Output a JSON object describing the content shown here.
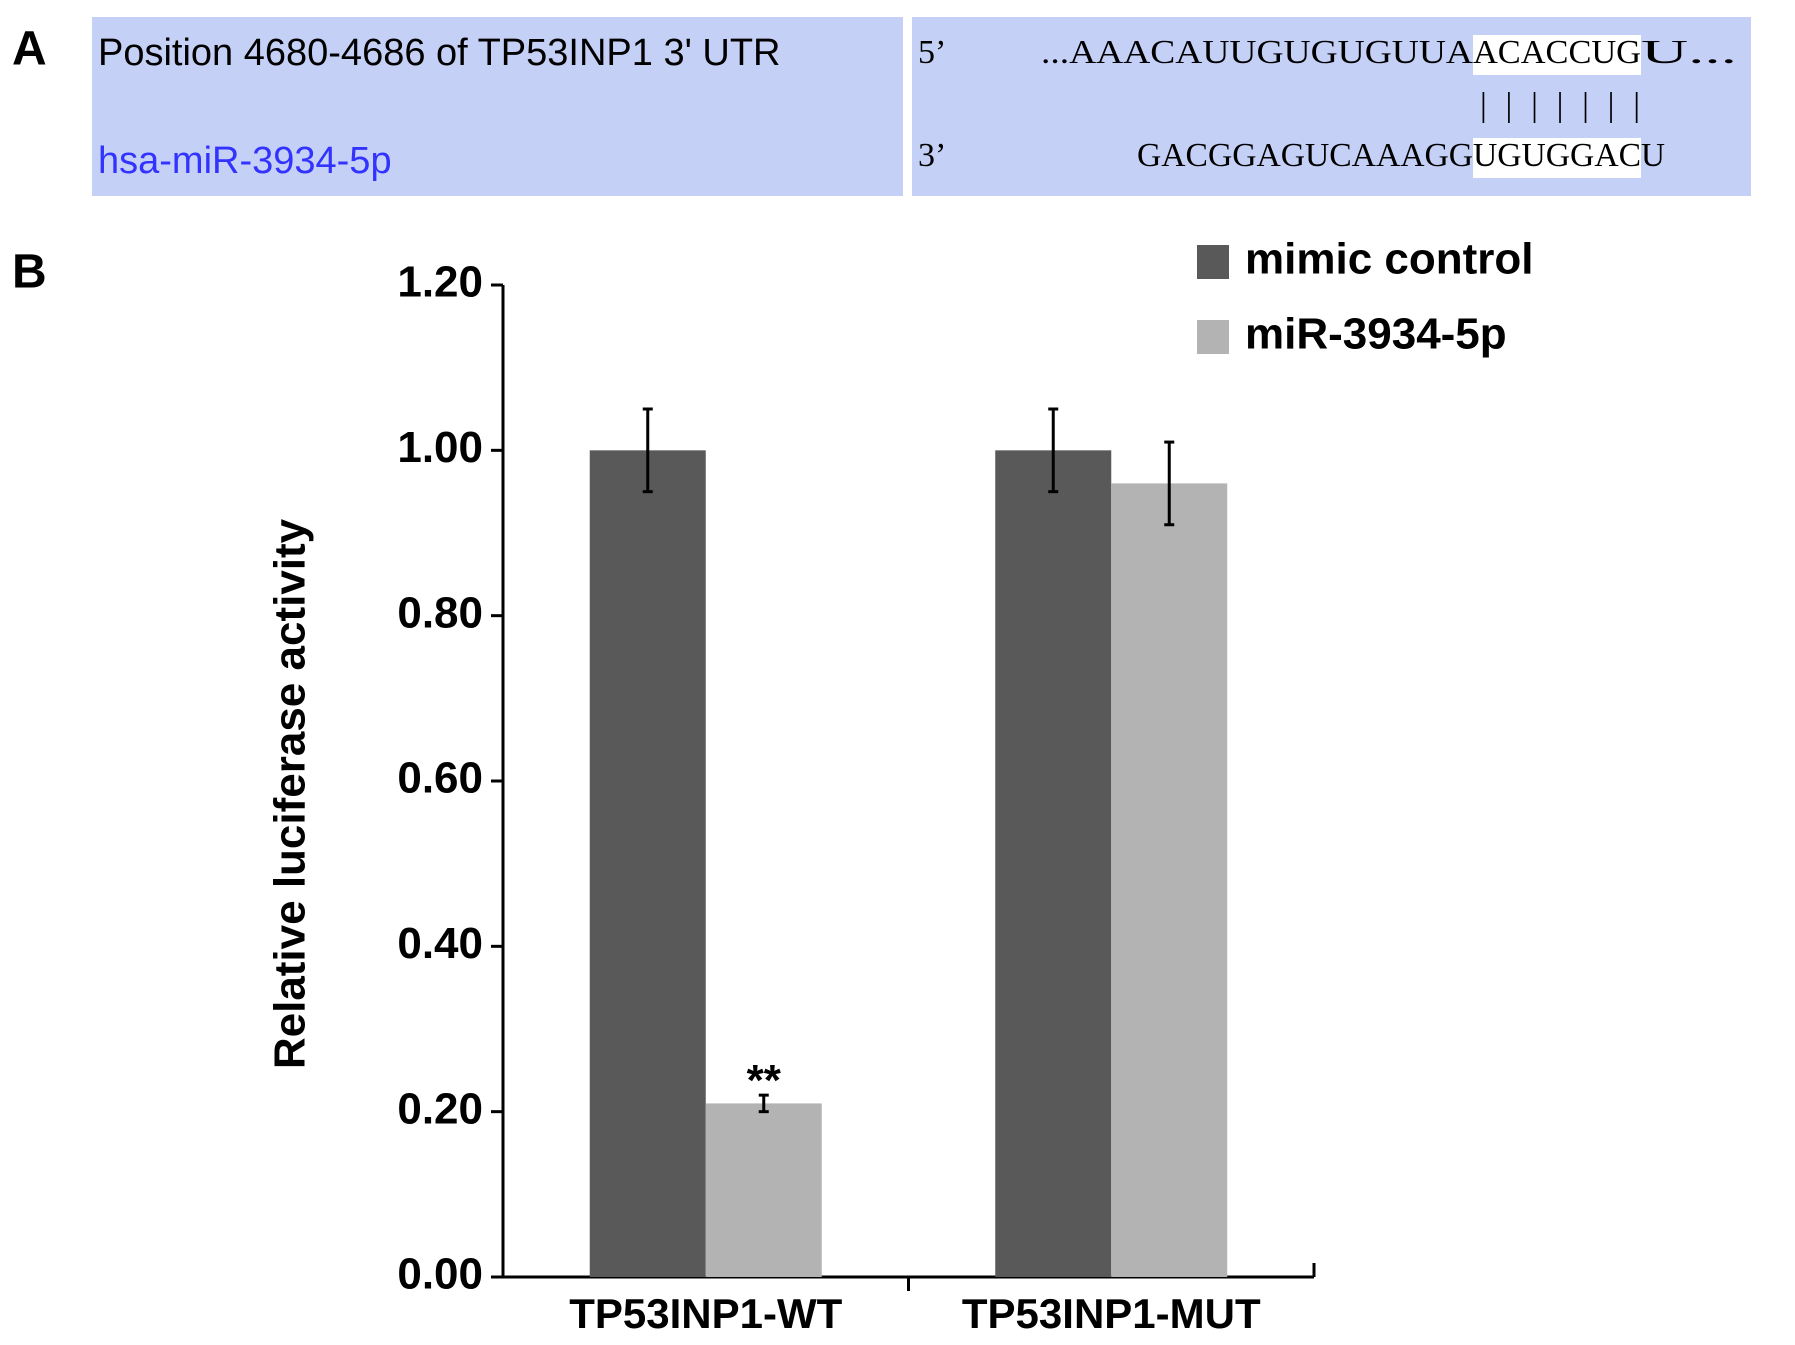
{
  "panel_labels": [
    "A",
    "B"
  ],
  "alignment": {
    "utr_label": "Position 4680-4686 of TP53INP1 3' UTR",
    "mirna_label": "hsa-miR-3934-5p",
    "utr_end": "5’",
    "mirna_end": "3’",
    "utr_sequence": [
      "...AAACAUUGUGUGUUA",
      "ACACCUG",
      "U..."
    ],
    "pairing": "|||||||",
    "mirna_sequence": [
      "GACGGAGUCAAAGG",
      "UGUGGAC",
      "U"
    ]
  },
  "chart_data": {
    "type": "bar",
    "categories": [
      "TP53INP1-WT",
      "TP53INP1-MUT"
    ],
    "series": [
      {
        "name": "mimic control",
        "color": "#595959",
        "values": [
          1.0,
          1.0
        ],
        "errors": [
          0.05,
          0.05
        ]
      },
      {
        "name": "miR-3934-5p",
        "color": "#b3b3b3",
        "values": [
          0.21,
          0.96
        ],
        "errors": [
          0.01,
          0.05
        ]
      }
    ],
    "annotations": [
      {
        "text": "**",
        "series": 1,
        "category": 0
      }
    ],
    "y_label": "Relative luciferase activity",
    "ylim": [
      0,
      1.2
    ],
    "yticks": [
      {
        "value": 0,
        "label": "0.00"
      },
      {
        "value": 0.2,
        "label": "0.20"
      },
      {
        "value": 0.4,
        "label": "0.40"
      },
      {
        "value": 0.6,
        "label": "0.60"
      },
      {
        "value": 0.8,
        "label": "0.80"
      },
      {
        "value": 1.0,
        "label": "1.00"
      },
      {
        "value": 1.2,
        "label": "1.20"
      }
    ],
    "legend": "upper right"
  }
}
